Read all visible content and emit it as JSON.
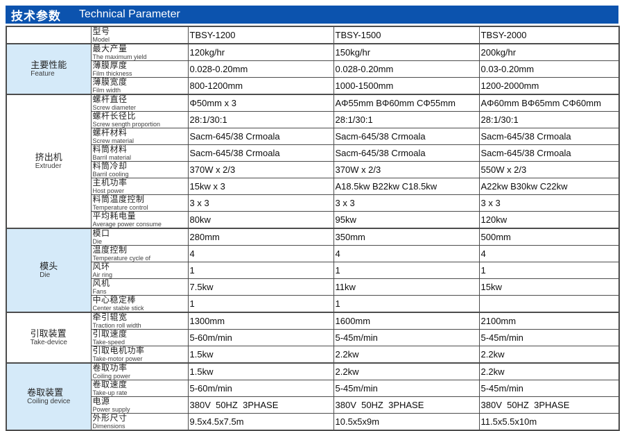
{
  "title": {
    "zh": "技术参数",
    "en": "Technical Parameter"
  },
  "colors": {
    "header_bg": "#0c53ae",
    "header_text": "#ffffff",
    "row_alt_bg": "#d5eaf9",
    "border": "#4c4c4c"
  },
  "model_label": {
    "zh": "型号",
    "en": "Model"
  },
  "models": [
    "TBSY-1200",
    "TBSY-1500",
    "TBSY-2000"
  ],
  "groups": [
    {
      "zh": "主要性能",
      "en": "Feature",
      "rows": [
        {
          "zh": "最大产量",
          "en": "The maximum yield",
          "values": [
            "120kg/hr",
            "150kg/hr",
            "200kg/hr"
          ]
        },
        {
          "zh": "薄膜厚度",
          "en": "Film thickness",
          "values": [
            "0.028-0.20mm",
            "0.028-0.20mm",
            "0.03-0.20mm"
          ]
        },
        {
          "zh": "薄膜宽度",
          "en": "Film width",
          "values": [
            "800-1200mm",
            "1000-1500mm",
            "1200-2000mm"
          ]
        }
      ]
    },
    {
      "zh": "挤出机",
      "en": "Extruder",
      "rows": [
        {
          "zh": "螺杆直径",
          "en": "Screw diameter",
          "values": [
            "Φ50mm x 3",
            "AΦ55mm BΦ60mm CΦ55mm",
            "AΦ60mm BΦ65mm CΦ60mm"
          ]
        },
        {
          "zh": "螺杆长径比",
          "en": "Screw sength proportion",
          "values": [
            "28:1/30:1",
            "28:1/30:1",
            "28:1/30:1"
          ]
        },
        {
          "zh": "螺杆材料",
          "en": "Screw material",
          "values": [
            "Sacm-645/38 Crmoala",
            "Sacm-645/38 Crmoala",
            "Sacm-645/38 Crmoala"
          ]
        },
        {
          "zh": "料筒材料",
          "en": "Barril material",
          "values": [
            "Sacm-645/38 Crmoala",
            "Sacm-645/38 Crmoala",
            "Sacm-645/38 Crmoala"
          ]
        },
        {
          "zh": "料筒冷却",
          "en": "Barril cooling",
          "values": [
            "370W x 2/3",
            "370W x 2/3",
            "550W x 2/3"
          ]
        },
        {
          "zh": "主机功率",
          "en": "Host power",
          "values": [
            "15kw x 3",
            "A18.5kw B22kw C18.5kw",
            "A22kw B30kw C22kw"
          ]
        },
        {
          "zh": "料筒温度控制",
          "en": "Temperature control",
          "values": [
            "3 x 3",
            "3 x 3",
            "3 x 3"
          ]
        },
        {
          "zh": "平均耗电量",
          "en": "Average power consume",
          "values": [
            "80kw",
            "95kw",
            "120kw"
          ]
        }
      ]
    },
    {
      "zh": "模头",
      "en": "Die",
      "rows": [
        {
          "zh": "模口",
          "en": "Die",
          "values": [
            "280mm",
            "350mm",
            "500mm"
          ]
        },
        {
          "zh": "温度控制",
          "en": "Temperature cycle of",
          "values": [
            "4",
            "4",
            "4"
          ]
        },
        {
          "zh": "风环",
          "en": "Air ring",
          "values": [
            "1",
            "1",
            "1"
          ]
        },
        {
          "zh": "风机",
          "en": "Fans",
          "values": [
            "7.5kw",
            "11kw",
            "15kw"
          ]
        },
        {
          "zh": "中心稳定棒",
          "en": "Center stable stick",
          "values": [
            "1",
            "1",
            ""
          ]
        }
      ]
    },
    {
      "zh": "引取装置",
      "en": "Take-device",
      "rows": [
        {
          "zh": "牵引辊宽",
          "en": "Traction roll width",
          "values": [
            "1300mm",
            "1600mm",
            "2100mm"
          ]
        },
        {
          "zh": "引取速度",
          "en": "Take-speed",
          "values": [
            "5-60m/min",
            "5-45m/min",
            "5-45m/min"
          ]
        },
        {
          "zh": "引取电机功率",
          "en": "Take-motor power",
          "values": [
            "1.5kw",
            "2.2kw",
            "2.2kw"
          ]
        }
      ]
    },
    {
      "zh": "卷取装置",
      "en": "Coiling device",
      "rows": [
        {
          "zh": "卷取功率",
          "en": "Coiling power",
          "values": [
            "1.5kw",
            "2.2kw",
            "2.2kw"
          ]
        },
        {
          "zh": "卷取速度",
          "en": "Take-up rate",
          "values": [
            "5-60m/min",
            "5-45m/min",
            "5-45m/min"
          ]
        },
        {
          "zh": "电源",
          "en": "Power supply",
          "values": [
            "380V  50HZ  3PHASE",
            "380V  50HZ  3PHASE",
            "380V  50HZ  3PHASE"
          ]
        },
        {
          "zh": "外形尺寸",
          "en": "Dimensions",
          "values": [
            "9.5x4.5x7.5m",
            "10.5x5x9m",
            "11.5x5.5x10m"
          ]
        }
      ]
    }
  ]
}
